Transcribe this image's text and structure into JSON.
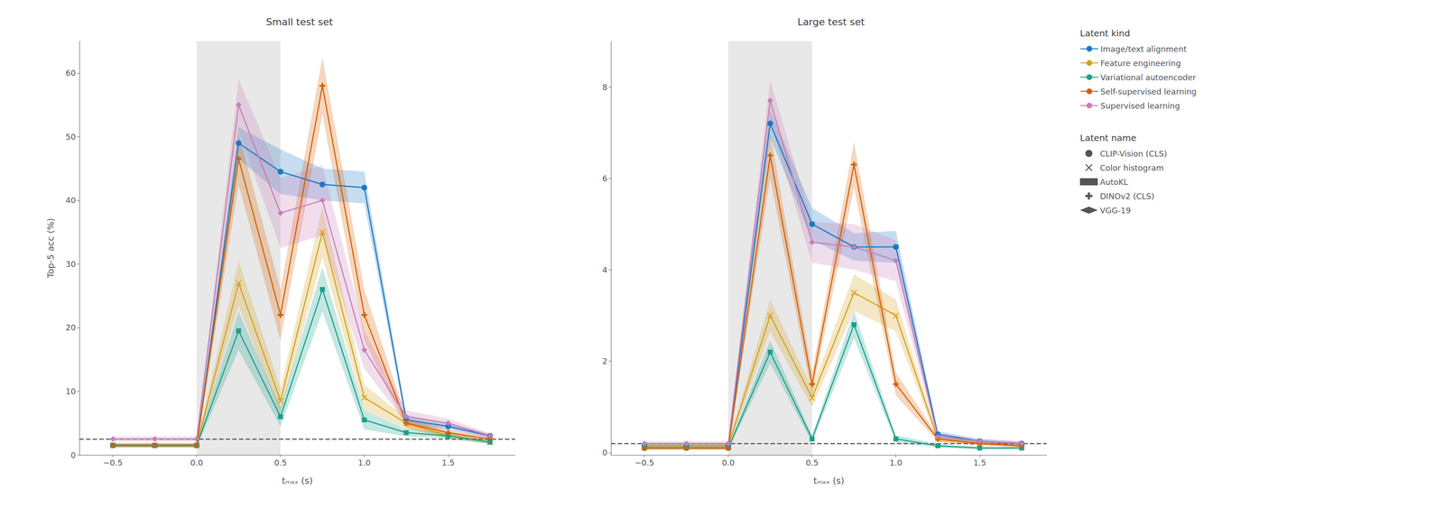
{
  "chart_data": [
    {
      "type": "line",
      "title": "Small test set",
      "xlabel": "tₘₐₓ (s)",
      "ylabel": "Top-5 acc (%)",
      "x": [
        -0.5,
        -0.25,
        0.0,
        0.25,
        0.5,
        0.75,
        1.0,
        1.25,
        1.5,
        1.75
      ],
      "xlim": [
        -0.7,
        1.9
      ],
      "xticks": [
        {
          "value": -0.5,
          "label": "−0.5"
        },
        {
          "value": 0.0,
          "label": "0.0"
        },
        0.5,
        {
          "value": 1.0,
          "label": "1.0"
        },
        1.5
      ],
      "ylim": [
        0,
        65
      ],
      "yticks": [
        0,
        10,
        20,
        30,
        40,
        50,
        60
      ],
      "grid": false,
      "shaded_region": {
        "x": [
          0.0,
          0.5
        ],
        "color": "#e8e8e8"
      },
      "reference_line": {
        "y": 2.5,
        "color": "#555555",
        "line_style": "dashed"
      },
      "series": [
        {
          "name": "CLIP-Vision (CLS)",
          "kind": "Image/text alignment",
          "color": "#1a78c2",
          "marker": "o",
          "values": [
            1.5,
            1.5,
            1.5,
            49.0,
            44.5,
            42.5,
            42.0,
            5.5,
            4.5,
            3.0
          ],
          "errors": [
            0.3,
            0.3,
            0.3,
            2.5,
            3.5,
            2.5,
            2.5,
            0.8,
            0.5,
            0.3
          ]
        },
        {
          "name": "Color histogram",
          "kind": "Feature engineering",
          "color": "#d4a017",
          "marker": "x",
          "values": [
            1.5,
            1.5,
            1.5,
            27.0,
            8.5,
            35.0,
            9.0,
            5.0,
            3.0,
            2.0
          ],
          "errors": [
            0.3,
            0.3,
            0.3,
            3.5,
            2.0,
            4.0,
            2.0,
            0.8,
            0.5,
            0.3
          ]
        },
        {
          "name": "AutoKL",
          "kind": "Variational autoencoder",
          "color": "#17a08a",
          "marker": "s",
          "values": [
            1.5,
            1.5,
            1.5,
            19.5,
            6.0,
            26.0,
            5.5,
            3.5,
            3.0,
            2.0
          ],
          "errors": [
            0.3,
            0.3,
            0.3,
            3.0,
            1.5,
            3.5,
            1.5,
            0.6,
            0.4,
            0.3
          ]
        },
        {
          "name": "DINOv2 (CLS)",
          "kind": "Self-supervised learning",
          "color": "#d45f00",
          "marker": "P",
          "values": [
            1.5,
            1.5,
            1.5,
            46.5,
            22.0,
            58.0,
            22.0,
            5.0,
            3.5,
            2.5
          ],
          "errors": [
            0.3,
            0.3,
            0.3,
            4.0,
            4.0,
            4.5,
            4.0,
            0.8,
            0.5,
            0.3
          ]
        },
        {
          "name": "VGG-19",
          "kind": "Supervised learning",
          "color": "#c87db8",
          "marker": "D",
          "values": [
            2.5,
            2.5,
            2.5,
            55.0,
            38.0,
            40.0,
            16.5,
            6.0,
            5.0,
            3.0
          ],
          "errors": [
            0.4,
            0.4,
            0.4,
            4.0,
            5.5,
            5.5,
            3.0,
            1.0,
            0.7,
            0.4
          ]
        }
      ]
    },
    {
      "type": "line",
      "title": "Large test set",
      "xlabel": "tₘₐₓ (s)",
      "x": [
        -0.5,
        -0.25,
        0.0,
        0.25,
        0.5,
        0.75,
        1.0,
        1.25,
        1.5,
        1.75
      ],
      "xlim": [
        -0.7,
        1.9
      ],
      "xticks": [
        {
          "value": -0.5,
          "label": "−0.5"
        },
        {
          "value": 0.0,
          "label": "0.0"
        },
        0.5,
        {
          "value": 1.0,
          "label": "1.0"
        },
        1.5
      ],
      "ylim": [
        -0.05,
        9.0
      ],
      "yticks": [
        0,
        2,
        4,
        6,
        8
      ],
      "grid": false,
      "shaded_region": {
        "x": [
          0.0,
          0.5
        ],
        "color": "#e8e8e8"
      },
      "reference_line": {
        "y": 0.2,
        "color": "#555555",
        "line_style": "dashed"
      },
      "series": [
        {
          "name": "CLIP-Vision (CLS)",
          "kind": "Image/text alignment",
          "color": "#1a78c2",
          "marker": "o",
          "values": [
            0.15,
            0.15,
            0.15,
            7.2,
            5.0,
            4.5,
            4.5,
            0.4,
            0.25,
            0.2
          ],
          "errors": [
            0.04,
            0.04,
            0.04,
            0.3,
            0.35,
            0.3,
            0.35,
            0.07,
            0.05,
            0.04
          ]
        },
        {
          "name": "Color histogram",
          "kind": "Feature engineering",
          "color": "#d4a017",
          "marker": "x",
          "values": [
            0.15,
            0.15,
            0.15,
            3.0,
            1.2,
            3.5,
            3.0,
            0.3,
            0.2,
            0.15
          ],
          "errors": [
            0.04,
            0.04,
            0.04,
            0.35,
            0.2,
            0.4,
            0.35,
            0.06,
            0.04,
            0.03
          ]
        },
        {
          "name": "AutoKL",
          "kind": "Variational autoencoder",
          "color": "#17a08a",
          "marker": "s",
          "values": [
            0.1,
            0.1,
            0.1,
            2.2,
            0.3,
            2.8,
            0.3,
            0.15,
            0.1,
            0.1
          ],
          "errors": [
            0.03,
            0.03,
            0.03,
            0.25,
            0.08,
            0.3,
            0.08,
            0.04,
            0.03,
            0.03
          ]
        },
        {
          "name": "DINOv2 (CLS)",
          "kind": "Self-supervised learning",
          "color": "#d45f00",
          "marker": "P",
          "values": [
            0.1,
            0.1,
            0.1,
            6.5,
            1.5,
            6.3,
            1.5,
            0.3,
            0.2,
            0.15
          ],
          "errors": [
            0.04,
            0.04,
            0.04,
            0.5,
            0.25,
            0.5,
            0.25,
            0.06,
            0.04,
            0.04
          ]
        },
        {
          "name": "VGG-19",
          "kind": "Supervised learning",
          "color": "#c87db8",
          "marker": "D",
          "values": [
            0.2,
            0.2,
            0.2,
            7.7,
            4.6,
            4.5,
            4.2,
            0.35,
            0.25,
            0.2
          ],
          "errors": [
            0.05,
            0.05,
            0.05,
            0.45,
            0.45,
            0.5,
            0.45,
            0.07,
            0.05,
            0.05
          ]
        }
      ],
      "legend": "upper right",
      "legend_sections": [
        {
          "title": "Latent kind",
          "entries": [
            {
              "name": "Image/text alignment",
              "color": "#1a78c2"
            },
            {
              "name": "Feature engineering",
              "color": "#d4a017"
            },
            {
              "name": "Variational autoencoder",
              "color": "#17a08a"
            },
            {
              "name": "Self-supervised learning",
              "color": "#d45f00"
            },
            {
              "name": "Supervised learning",
              "color": "#c87db8"
            }
          ]
        },
        {
          "title": "Latent name",
          "entries": [
            {
              "name": "CLIP-Vision (CLS)",
              "marker": "o",
              "color": "#555555"
            },
            {
              "name": "Color histogram",
              "marker": "x",
              "color": "#555555"
            },
            {
              "name": "AutoKL",
              "marker": "s",
              "color": "#555555"
            },
            {
              "name": "DINOv2 (CLS)",
              "marker": "P",
              "color": "#555555"
            },
            {
              "name": "VGG-19",
              "marker": "D",
              "color": "#555555"
            }
          ]
        }
      ]
    }
  ]
}
